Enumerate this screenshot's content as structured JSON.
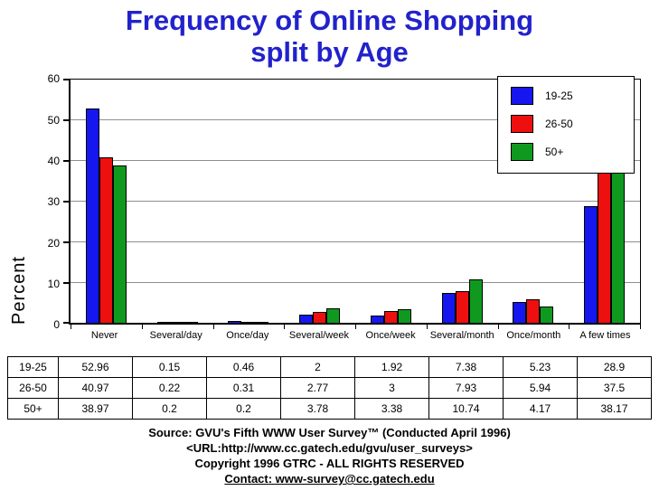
{
  "title": {
    "line1": "Frequency of Online Shopping",
    "line2": "split by Age"
  },
  "chart_data": {
    "type": "bar",
    "categories": [
      "Never",
      "Several/day",
      "Once/day",
      "Several/week",
      "Once/week",
      "Several/month",
      "Once/month",
      "A few times"
    ],
    "series": [
      {
        "name": "19-25",
        "color": "#1616ee",
        "values": [
          52.96,
          0.15,
          0.46,
          2,
          1.92,
          7.38,
          5.23,
          28.9
        ]
      },
      {
        "name": "26-50",
        "color": "#ee0f0f",
        "values": [
          40.97,
          0.22,
          0.31,
          2.77,
          3,
          7.93,
          5.94,
          37.5
        ]
      },
      {
        "name": "50+",
        "color": "#0f9a1f",
        "values": [
          38.97,
          0.2,
          0.2,
          3.78,
          3.38,
          10.74,
          4.17,
          38.17
        ]
      }
    ],
    "title": "Frequency of Online Shopping split by Age",
    "xlabel": "",
    "ylabel": "Percent",
    "ylim": [
      0,
      60
    ],
    "yticks": [
      0,
      10,
      20,
      30,
      40,
      50,
      60
    ],
    "grid": true,
    "legend_position": "top-right"
  },
  "table": {
    "rows": [
      {
        "label": "19-25",
        "values": [
          "52.96",
          "0.15",
          "0.46",
          "2",
          "1.92",
          "7.38",
          "5.23",
          "28.9"
        ]
      },
      {
        "label": "26-50",
        "values": [
          "40.97",
          "0.22",
          "0.31",
          "2.77",
          "3",
          "7.93",
          "5.94",
          "37.5"
        ]
      },
      {
        "label": "50+",
        "values": [
          "38.97",
          "0.2",
          "0.2",
          "3.78",
          "3.38",
          "10.74",
          "4.17",
          "38.17"
        ]
      }
    ]
  },
  "footer": {
    "lines": [
      "Source: GVU's Fifth WWW User Survey™  (Conducted April 1996)",
      "<URL:http://www.cc.gatech.edu/gvu/user_surveys>",
      "Copyright 1996 GTRC -  ALL RIGHTS RESERVED",
      "Contact: www-survey@cc.gatech.edu"
    ]
  }
}
